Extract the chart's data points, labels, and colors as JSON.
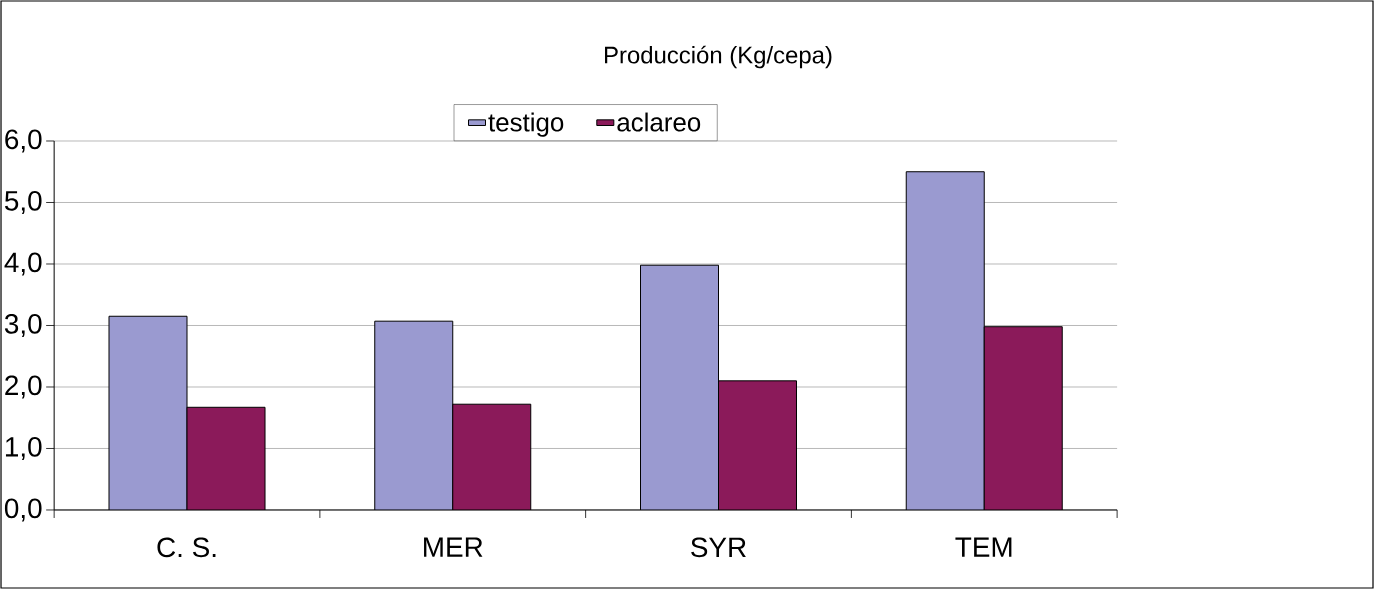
{
  "chart_data": {
    "type": "bar",
    "title": "Producción (Kg/cepa)",
    "categories": [
      "C. S.",
      "MER",
      "SYR",
      "TEM"
    ],
    "series": [
      {
        "name": "testigo",
        "color": "#9a9ad0",
        "values": [
          3.15,
          3.07,
          3.98,
          5.5
        ]
      },
      {
        "name": "aclareo",
        "color": "#8b1a5a",
        "values": [
          1.67,
          1.72,
          2.1,
          2.98
        ]
      }
    ],
    "ylim": [
      0,
      6
    ],
    "yticks": [
      {
        "value": 0,
        "label": "0,0"
      },
      {
        "value": 1,
        "label": "1,0"
      },
      {
        "value": 2,
        "label": "2,0"
      },
      {
        "value": 3,
        "label": "3,0"
      },
      {
        "value": 4,
        "label": "4,0"
      },
      {
        "value": 5,
        "label": "5,0"
      },
      {
        "value": 6,
        "label": "6,0"
      }
    ],
    "grid": "y",
    "legend": "top"
  }
}
